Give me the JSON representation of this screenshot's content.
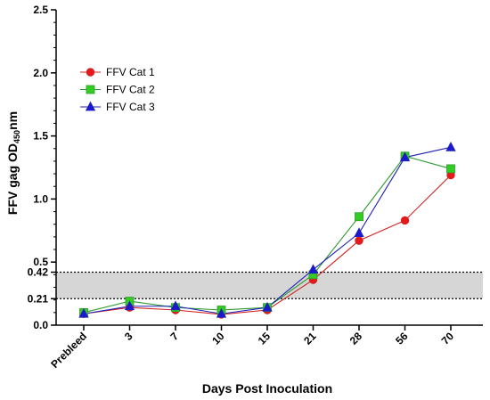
{
  "chart_data": {
    "type": "line",
    "xlabel": "Days Post Inoculation",
    "ylabel_main": "FFV gag OD",
    "ylabel_sub": "450",
    "ylabel_suffix": "nm",
    "categories": [
      "Prebleed",
      "3",
      "7",
      "10",
      "15",
      "21",
      "28",
      "56",
      "70"
    ],
    "ylim": [
      0,
      2.5
    ],
    "yticks": [
      "0.0",
      "0.21",
      "0.42",
      "0.5",
      "1.0",
      "1.5",
      "2.0",
      "2.5"
    ],
    "ytick_values": [
      0,
      0.21,
      0.42,
      0.5,
      1.0,
      1.5,
      2.0,
      2.5
    ],
    "threshold_band": [
      0.21,
      0.42
    ],
    "legend_position": "upper-left",
    "series": [
      {
        "name": "FFV Cat 1",
        "marker": "circle",
        "color": "#d32020",
        "fill": "#e41a1a",
        "values": [
          0.09,
          0.14,
          0.12,
          0.085,
          0.12,
          0.36,
          0.67,
          0.83,
          1.19
        ]
      },
      {
        "name": "FFV Cat 2",
        "marker": "square",
        "color": "#2e9b2e",
        "fill": "#33cc22",
        "values": [
          0.1,
          0.19,
          0.14,
          0.12,
          0.14,
          0.4,
          0.86,
          1.34,
          1.24
        ]
      },
      {
        "name": "FFV Cat 3",
        "marker": "triangle",
        "color": "#2222bb",
        "fill": "#1a1acc",
        "values": [
          0.09,
          0.15,
          0.15,
          0.09,
          0.14,
          0.44,
          0.73,
          1.33,
          1.41
        ]
      }
    ]
  }
}
